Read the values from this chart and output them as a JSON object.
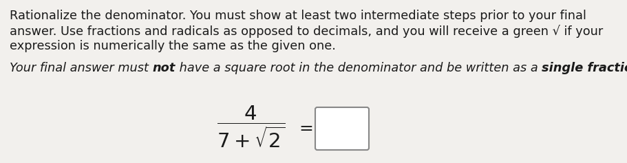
{
  "background_color": "#f2f0ed",
  "line1": "Rationalize the denominator. You must show at least two intermediate steps prior to your final",
  "line2": "answer. Use fractions and radicals as opposed to decimals, and you will receive a green √ if your",
  "line3": "expression is numerically the same as the given one.",
  "font_size_body": 12.8,
  "text_color": "#1a1a1a",
  "fig_width": 9.11,
  "fig_height": 2.37,
  "dpi": 100
}
